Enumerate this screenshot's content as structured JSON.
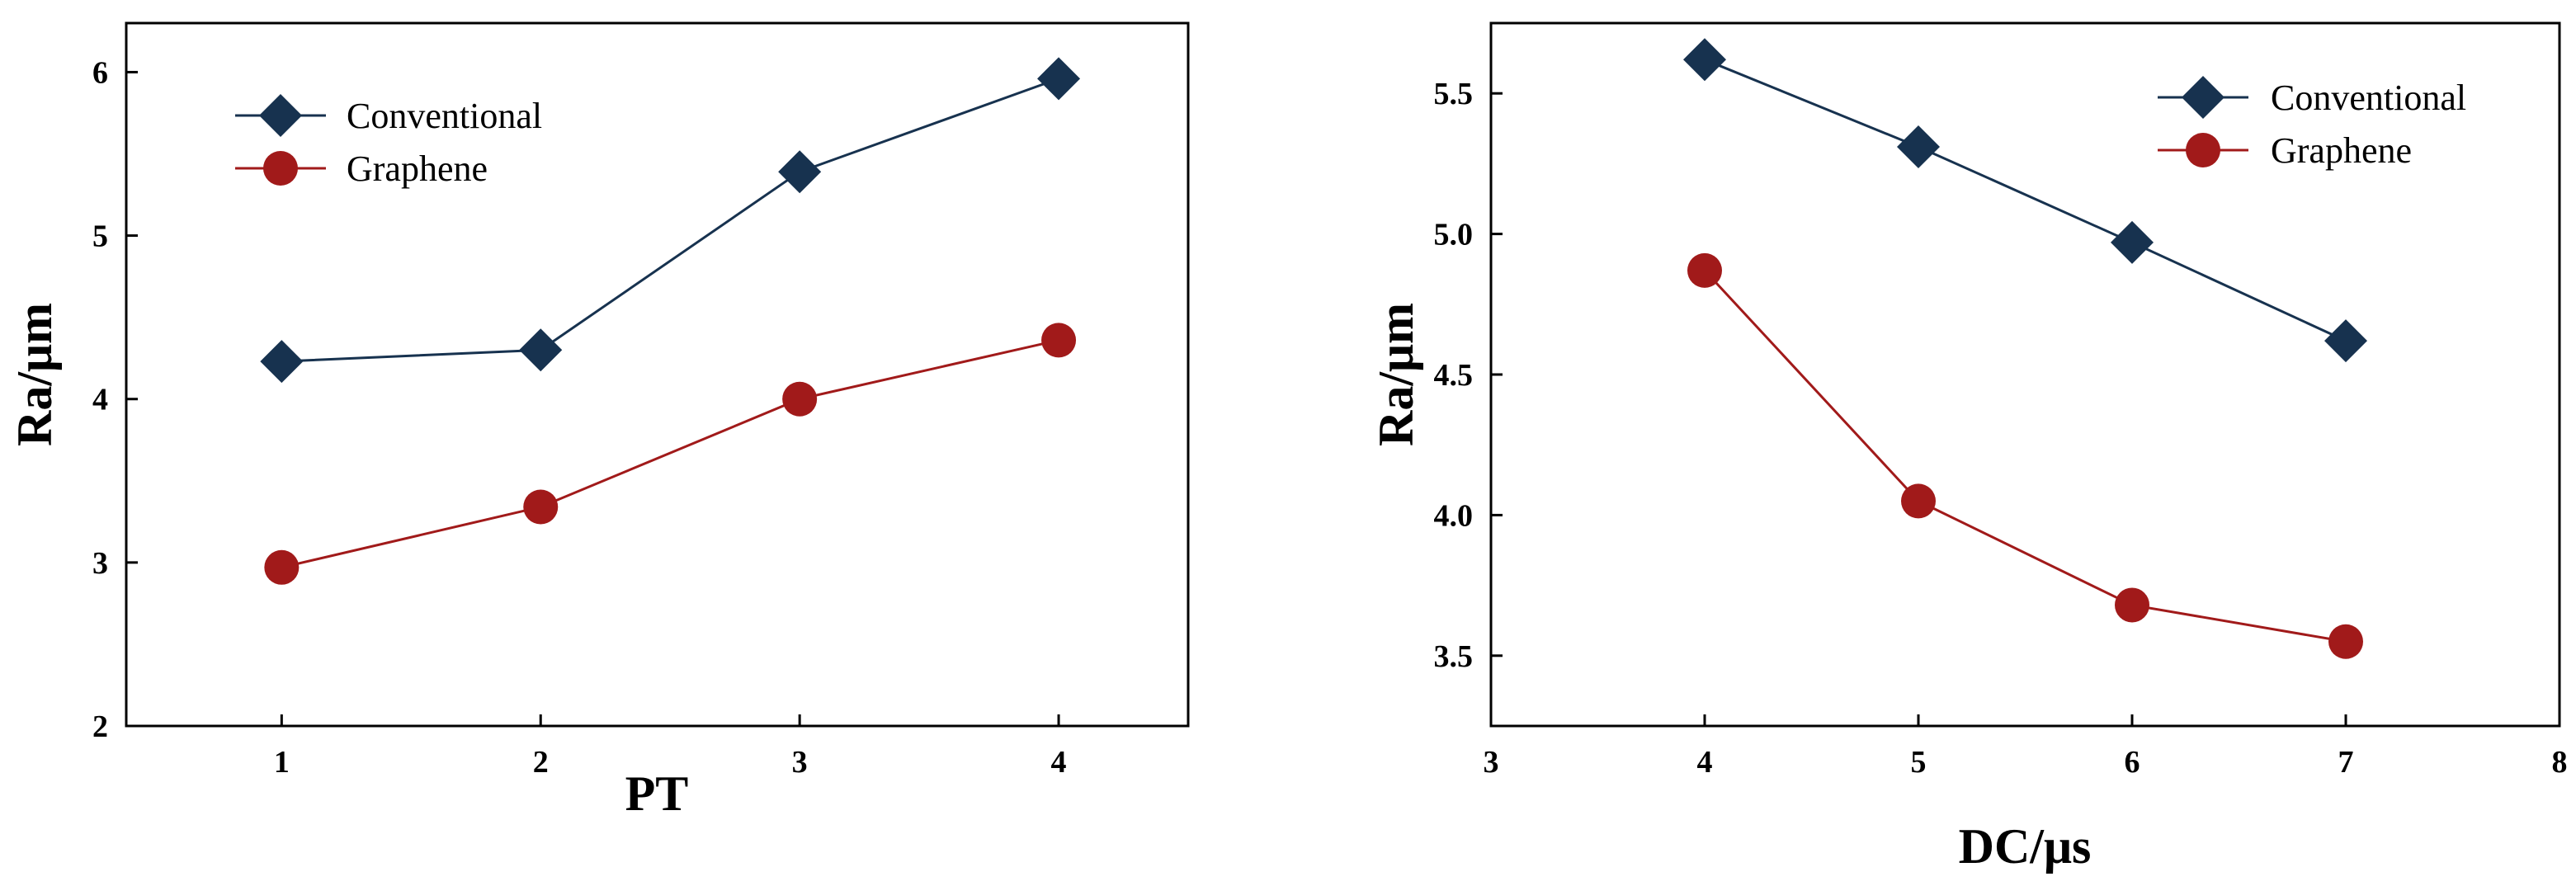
{
  "colors": {
    "conventional": "#17324f",
    "graphene": "#a11a1a"
  },
  "chart_data": [
    {
      "type": "line",
      "title": "",
      "xlabel": "PT",
      "ylabel": "Ra/μm",
      "xlim": [
        0.4,
        4.5
      ],
      "ylim": [
        2,
        6.3
      ],
      "xticks": [
        1,
        2,
        3,
        4
      ],
      "yticks": [
        2,
        3,
        4,
        5,
        6
      ],
      "xtick_labels": [
        "1",
        "2",
        "3",
        "4"
      ],
      "ytick_labels": [
        "2",
        "3",
        "4",
        "5",
        "6"
      ],
      "legend_position": "top-left",
      "grid": false,
      "series": [
        {
          "name": "Conventional",
          "marker": "diamond",
          "x": [
            1,
            2,
            3,
            4
          ],
          "values": [
            4.23,
            4.3,
            5.39,
            5.96
          ]
        },
        {
          "name": "Graphene",
          "marker": "circle",
          "x": [
            1,
            2,
            3,
            4
          ],
          "values": [
            2.97,
            3.34,
            4.0,
            4.36
          ]
        }
      ]
    },
    {
      "type": "line",
      "title": "",
      "xlabel": "DC/μs",
      "ylabel": "Ra/μm",
      "xlim": [
        3,
        8
      ],
      "ylim": [
        3.25,
        5.75
      ],
      "xticks": [
        3,
        4,
        5,
        6,
        7,
        8
      ],
      "yticks": [
        3.5,
        4.0,
        4.5,
        5.0,
        5.5
      ],
      "xtick_labels": [
        "3",
        "4",
        "5",
        "6",
        "7",
        "8"
      ],
      "ytick_labels": [
        "3.5",
        "4.0",
        "4.5",
        "5.0",
        "5.5"
      ],
      "legend_position": "top-right",
      "grid": false,
      "series": [
        {
          "name": "Conventional",
          "marker": "diamond",
          "x": [
            4,
            5,
            6,
            7
          ],
          "values": [
            5.62,
            5.31,
            4.97,
            4.62
          ]
        },
        {
          "name": "Graphene",
          "marker": "circle",
          "x": [
            4,
            5,
            6,
            7
          ],
          "values": [
            4.87,
            4.05,
            3.68,
            3.55
          ]
        }
      ]
    }
  ]
}
